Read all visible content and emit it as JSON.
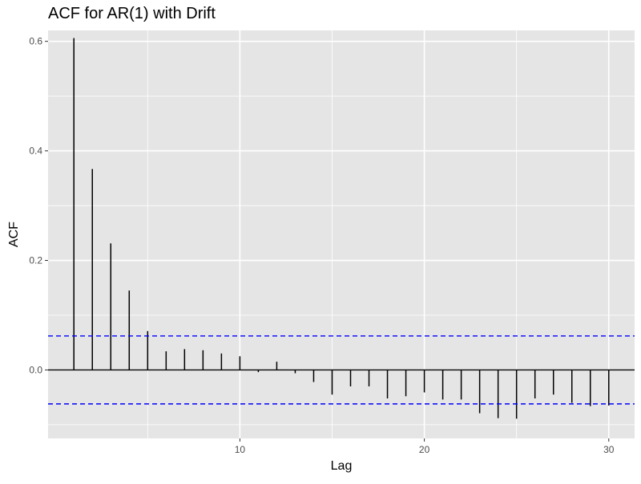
{
  "chart_data": {
    "type": "bar",
    "title": "ACF for AR(1) with Drift",
    "xlabel": "Lag",
    "ylabel": "ACF",
    "xlim": [
      -0.4,
      31.4
    ],
    "ylim": [
      -0.125,
      0.62
    ],
    "x_ticks": [
      10,
      20,
      30
    ],
    "y_ticks": [
      0.0,
      0.2,
      0.4,
      0.6
    ],
    "x_minor_ticks": [
      5,
      15,
      25
    ],
    "y_minor_ticks": [
      -0.1,
      0.1,
      0.3,
      0.5
    ],
    "x_tick_labels": [
      "10",
      "20",
      "30"
    ],
    "y_tick_labels": [
      "0.0",
      "0.2",
      "0.4",
      "0.6"
    ],
    "confidence_bounds": [
      0.062,
      -0.062
    ],
    "grid": true,
    "colors": {
      "panel_background": "#e5e5e5",
      "grid": "#ffffff",
      "bars": "#000000",
      "confidence": "#0000ff",
      "zero_line": "#000000"
    },
    "series": [
      {
        "lags": [
          1,
          2,
          3,
          4,
          5,
          6,
          7,
          8,
          9,
          10,
          11,
          12,
          13,
          14,
          15,
          16,
          17,
          18,
          19,
          20,
          21,
          22,
          23,
          24,
          25,
          26,
          27,
          28,
          29,
          30
        ],
        "values": [
          0.606,
          0.367,
          0.231,
          0.145,
          0.071,
          0.034,
          0.038,
          0.036,
          0.03,
          0.025,
          -0.004,
          0.015,
          -0.006,
          -0.022,
          -0.045,
          -0.03,
          -0.03,
          -0.052,
          -0.048,
          -0.041,
          -0.054,
          -0.054,
          -0.079,
          -0.088,
          -0.089,
          -0.052,
          -0.045,
          -0.06,
          -0.066,
          -0.065
        ]
      }
    ]
  }
}
